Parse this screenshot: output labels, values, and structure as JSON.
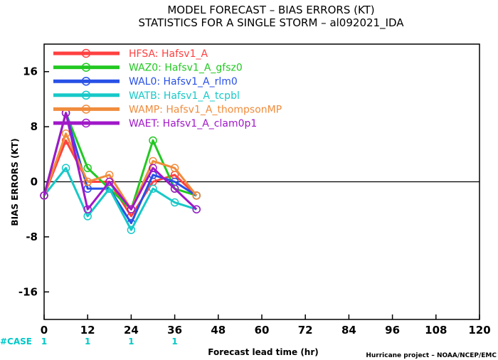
{
  "title_line1": "MODEL FORECAST – BIAS ERRORS (KT)",
  "title_line2": "STATISTICS FOR A SINGLE STORM – al092021_IDA",
  "credit": "Hurricane project – NOAA/NCEP/EMC",
  "case_label": "#CASE",
  "case_counts": [
    {
      "x": 0,
      "label": "1"
    },
    {
      "x": 12,
      "label": "1"
    },
    {
      "x": 24,
      "label": "1"
    },
    {
      "x": 36,
      "label": "1"
    }
  ],
  "chart_data": {
    "type": "line",
    "title": "MODEL FORECAST – BIAS ERRORS (KT)",
    "subtitle": "STATISTICS FOR A SINGLE STORM – al092021_IDA",
    "xlabel": "Forecast lead time (hr)",
    "ylabel": "BIAS ERRORS (KT)",
    "xlim": [
      0,
      120
    ],
    "ylim": [
      -20,
      20
    ],
    "xticks": [
      0,
      12,
      24,
      36,
      48,
      60,
      72,
      84,
      96,
      108,
      120
    ],
    "yticks": [
      -16,
      -8,
      0,
      8,
      16
    ],
    "grid": false,
    "legend_position": "top-left",
    "x": [
      0,
      6,
      12,
      18,
      24,
      30,
      36,
      42
    ],
    "series": [
      {
        "name": "HFSA: Hafsv1_A",
        "color": "#ff4040",
        "values": [
          -2,
          6,
          0,
          0,
          -5,
          0,
          1,
          -2
        ]
      },
      {
        "name": "WAZ0: Hafsv1_A_gfsz0",
        "color": "#22c822",
        "values": [
          -2,
          10,
          2,
          -1,
          -4,
          6,
          -1,
          -2
        ]
      },
      {
        "name": "WAL0: Hafsv1_A_rlm0",
        "color": "#2850e6",
        "values": [
          -2,
          10,
          -1,
          -1,
          -6,
          1,
          0,
          -2
        ]
      },
      {
        "name": "WATB: Hafsv1_A_tcpbl",
        "color": "#18c8c8",
        "values": [
          -2,
          2,
          -5,
          -1,
          -7,
          -1,
          -3,
          -4
        ]
      },
      {
        "name": "WAMP: Hafsv1_A_thompsonMP",
        "color": "#f08c3c",
        "values": [
          -2,
          7,
          0,
          1,
          -4,
          3,
          2,
          -2
        ]
      },
      {
        "name": "WAET: Hafsv1_A_clam0p1",
        "color": "#a018c8",
        "values": [
          -2,
          10,
          -4,
          0,
          -4,
          2,
          -1,
          -4
        ]
      }
    ]
  }
}
